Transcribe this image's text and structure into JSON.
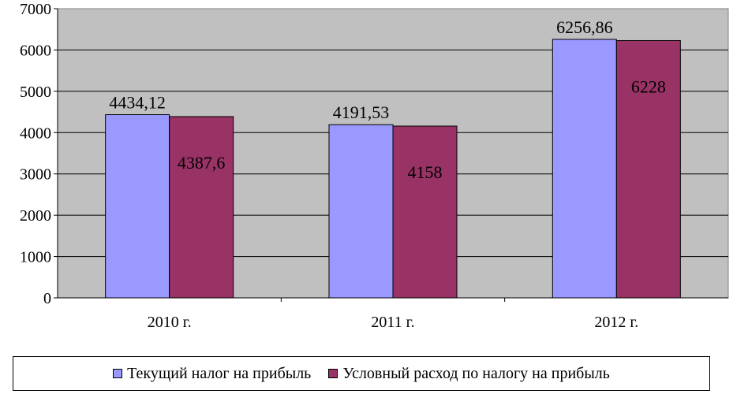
{
  "chart_data": {
    "type": "bar",
    "title": "",
    "xlabel": "",
    "ylabel": "",
    "categories": [
      "2010 г.",
      "2011 г.",
      "2012 г."
    ],
    "ylim": [
      0,
      7000
    ],
    "yticks": [
      0,
      1000,
      2000,
      3000,
      4000,
      5000,
      6000,
      7000
    ],
    "grid": true,
    "legend_position": "bottom",
    "series": [
      {
        "name": "Текущий налог на прибыль",
        "color": "#9999ff",
        "values": [
          4434.12,
          4191.53,
          6256.86
        ],
        "labels": [
          "4434,12",
          "4191,53",
          "6256,86"
        ]
      },
      {
        "name": "Условный расход по налогу на прибыль",
        "color": "#993366",
        "values": [
          4387.6,
          4158,
          6228
        ],
        "labels": [
          "4387,6",
          "4158",
          "6228"
        ]
      }
    ],
    "plot_background": "#c0c0c0"
  },
  "legend": {
    "item1": "Текущий налог на прибыль",
    "item2": "Условный расход по налогу на прибыль"
  }
}
